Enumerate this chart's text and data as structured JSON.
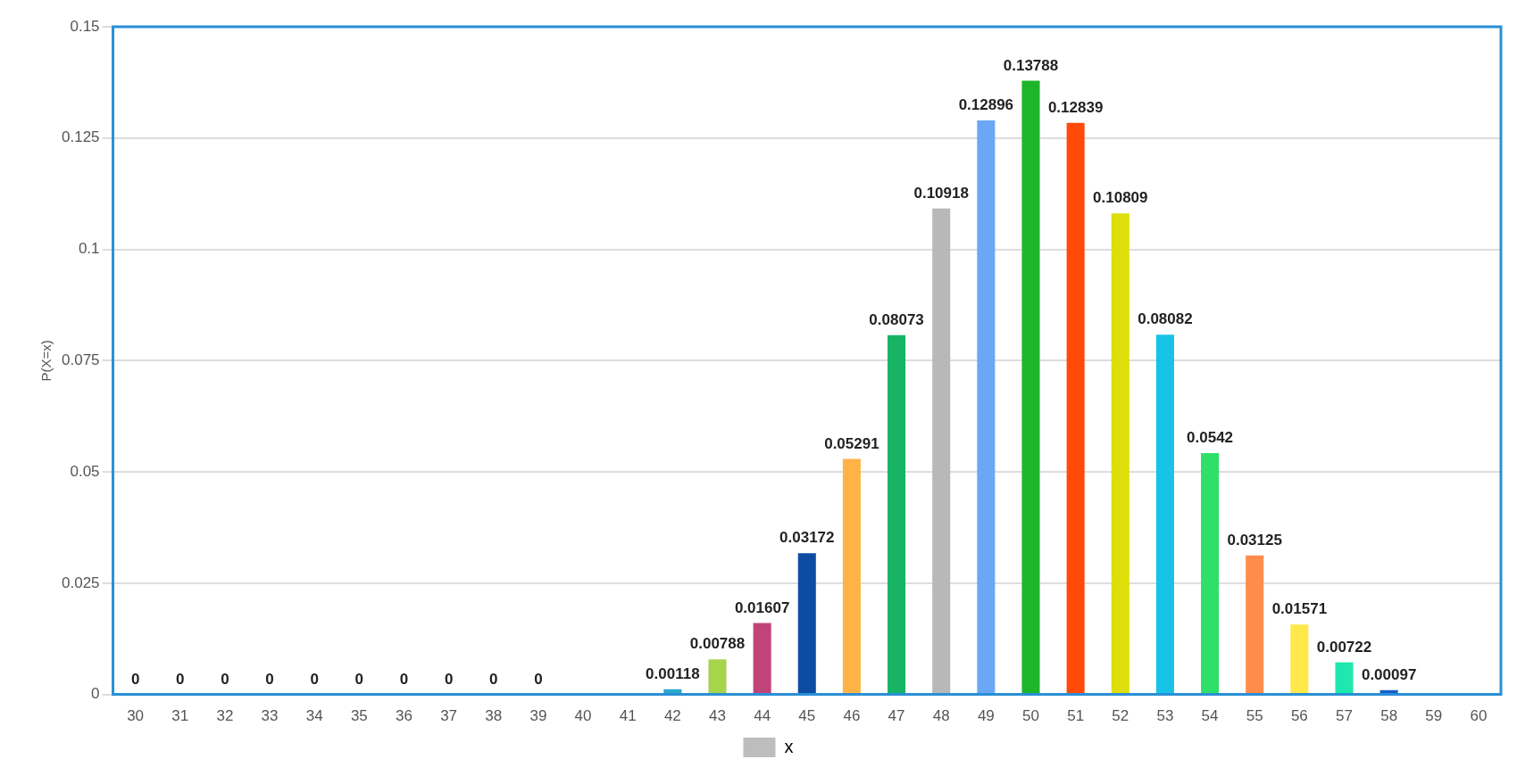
{
  "chart_data": {
    "type": "bar",
    "ylabel": "P(X=x)",
    "categories": [
      "30",
      "31",
      "32",
      "33",
      "34",
      "35",
      "36",
      "37",
      "38",
      "39",
      "40",
      "41",
      "42",
      "43",
      "44",
      "45",
      "46",
      "47",
      "48",
      "49",
      "50",
      "51",
      "52",
      "53",
      "54",
      "55",
      "56",
      "57",
      "58",
      "59",
      "60"
    ],
    "series": [
      {
        "name": "x",
        "color": "#bdbdbd",
        "values": [
          0,
          0,
          0,
          0,
          0,
          0,
          0,
          0,
          0,
          0,
          0,
          0,
          0.00118,
          0.00788,
          0.01607,
          0.03172,
          0.05291,
          0.08073,
          0.10918,
          0.12896,
          0.13788,
          0.12839,
          0.10809,
          0.08082,
          0.0542,
          0.03125,
          0.01571,
          0.00722,
          0.00097,
          0,
          0
        ],
        "value_labels": [
          "0",
          "0",
          "0",
          "0",
          "0",
          "0",
          "0",
          "0",
          "0",
          "0",
          null,
          null,
          "0.00118",
          "0.00788",
          "0.01607",
          "0.03172",
          "0.05291",
          "0.08073",
          "0.10918",
          "0.12896",
          "0.13788",
          "0.12839",
          "0.10809",
          "0.08082",
          "0.0542",
          "0.03125",
          "0.01571",
          "0.00722",
          "0.00097",
          null,
          null
        ],
        "colors": [
          "#bdbdbd",
          "#bdbdbd",
          "#bdbdbd",
          "#bdbdbd",
          "#bdbdbd",
          "#bdbdbd",
          "#bdbdbd",
          "#bdbdbd",
          "#bdbdbd",
          "#bdbdbd",
          "#bdbdbd",
          "#bdbdbd",
          "#29a9c9",
          "#a6d44a",
          "#c2437a",
          "#0c4da2",
          "#ffb347",
          "#18b464",
          "#b8b8b8",
          "#6aa8f5",
          "#1fb52a",
          "#ff4a0a",
          "#dede0a",
          "#17c3e6",
          "#2ee06a",
          "#ff8c4a",
          "#ffe84a",
          "#1ee8b0",
          "#1560c8",
          "#bdbdbd",
          "#bdbdbd"
        ]
      }
    ],
    "ylim": [
      0,
      0.15
    ],
    "yticks": [
      0,
      0.025,
      0.05,
      0.075,
      0.1,
      0.125,
      0.15
    ],
    "grid": "y",
    "legend": "bottom"
  }
}
